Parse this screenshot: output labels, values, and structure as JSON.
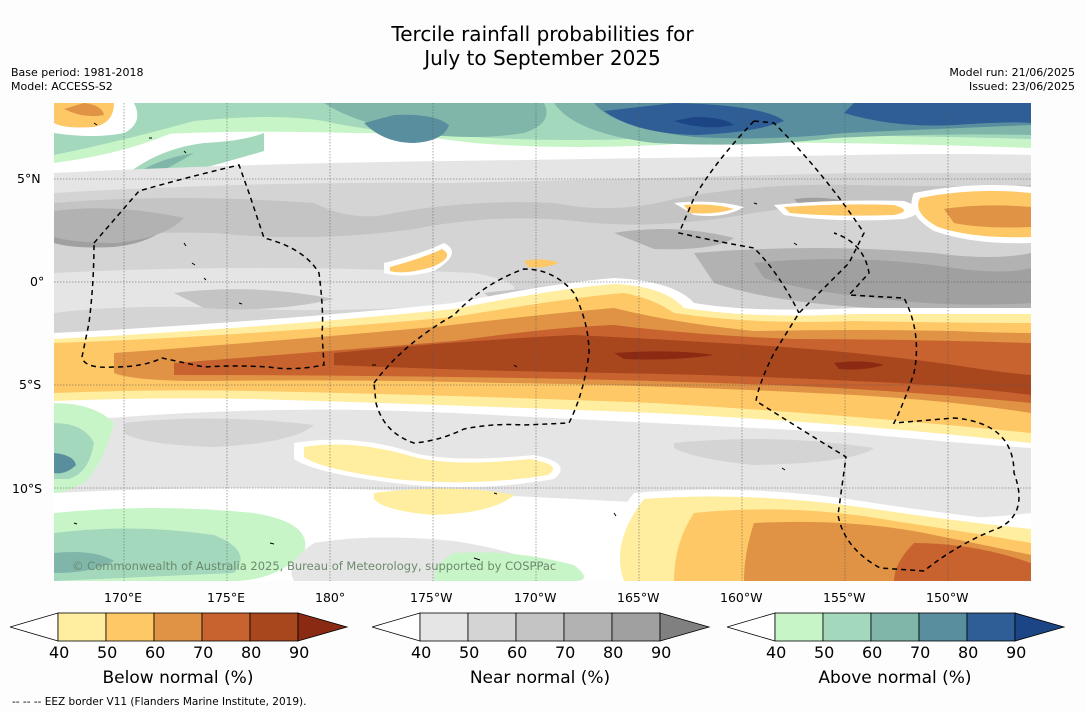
{
  "title": {
    "line1": "Tercile rainfall probabilities for",
    "line2": "July to September 2025"
  },
  "meta": {
    "base_period": "Base period: 1981-2018",
    "model": "Model: ACCESS-S2",
    "model_run": "Model run: 21/06/2025",
    "issued": "Issued: 23/06/2025"
  },
  "axes": {
    "lat_labels": [
      "5°N",
      "0°",
      "5°S",
      "10°S"
    ],
    "lon_labels": [
      "170°E",
      "175°E",
      "180°",
      "175°W",
      "170°W",
      "165°W",
      "160°W",
      "155°W",
      "150°W"
    ]
  },
  "copyright": "© Commonwealth of Australia 2025, Bureau of Meteorology, supported by COSPPac",
  "legend": {
    "ticks": [
      "40",
      "50",
      "60",
      "70",
      "80",
      "90"
    ],
    "below": {
      "title": "Below normal (%)",
      "colors": [
        "#ffffff",
        "#ffeda0",
        "#fdc865",
        "#e09245",
        "#c8632f",
        "#a8461e",
        "#8a2a12"
      ]
    },
    "near": {
      "title": "Near normal (%)",
      "colors": [
        "#ffffff",
        "#e5e5e5",
        "#d4d4d4",
        "#c4c4c4",
        "#b2b2b2",
        "#a0a0a0",
        "#808080"
      ]
    },
    "above": {
      "title": "Above normal (%)",
      "colors": [
        "#ffffff",
        "#c8f5c8",
        "#a3d8bc",
        "#80b5aa",
        "#588e9e",
        "#2e5e95",
        "#1b4585"
      ]
    }
  },
  "footer": "--  --  -- EEZ border V11 (Flanders Marine Institute, 2019)."
}
